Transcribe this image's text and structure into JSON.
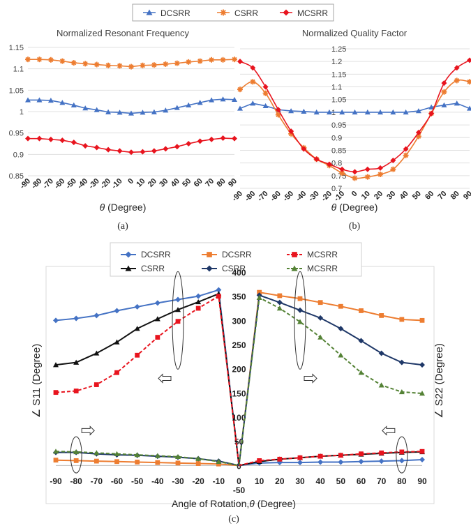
{
  "top_legend": [
    {
      "label": "DCSRR",
      "color": "#4472C4",
      "marker": "triangle"
    },
    {
      "label": "CSRR",
      "color": "#ED7D31",
      "marker": "star"
    },
    {
      "label": "MCSRR",
      "color": "#E8141E",
      "marker": "diamond"
    }
  ],
  "captions": {
    "a": "(a)",
    "b": "(b)",
    "c": "(c)"
  },
  "chart_data": [
    {
      "id": "a",
      "type": "line",
      "title": "Normalized Resonant Frequency",
      "xlabel_symbol": "θ",
      "xlabel_text": " (Degree)",
      "x": [
        -90,
        -80,
        -70,
        -60,
        -50,
        -40,
        -30,
        -20,
        -10,
        0,
        10,
        20,
        30,
        40,
        50,
        60,
        70,
        80,
        90
      ],
      "ylim": [
        0.85,
        1.15
      ],
      "yticks": [
        "0.85",
        "0.9",
        "0.95",
        "1",
        "1.05",
        "1.1",
        "1.15"
      ],
      "grid": true,
      "series": [
        {
          "name": "DCSRR",
          "color": "#4472C4",
          "marker": "triangle",
          "values": [
            1.027,
            1.027,
            1.026,
            1.021,
            1.015,
            1.008,
            1.004,
            0.999,
            0.998,
            0.996,
            0.998,
            0.999,
            1.003,
            1.009,
            1.015,
            1.021,
            1.027,
            1.029,
            1.028
          ]
        },
        {
          "name": "CSRR",
          "color": "#ED7D31",
          "marker": "star",
          "values": [
            1.122,
            1.122,
            1.121,
            1.118,
            1.114,
            1.112,
            1.11,
            1.108,
            1.107,
            1.105,
            1.108,
            1.109,
            1.111,
            1.113,
            1.116,
            1.118,
            1.121,
            1.121,
            1.122
          ]
        },
        {
          "name": "MCSRR",
          "color": "#E8141E",
          "marker": "diamond",
          "values": [
            0.937,
            0.937,
            0.935,
            0.933,
            0.928,
            0.92,
            0.916,
            0.911,
            0.908,
            0.905,
            0.906,
            0.908,
            0.913,
            0.918,
            0.925,
            0.931,
            0.935,
            0.938,
            0.937
          ]
        }
      ]
    },
    {
      "id": "b",
      "type": "line",
      "title": "Normalized Quality Factor",
      "xlabel_symbol": "θ",
      "xlabel_text": " (Degree)",
      "x": [
        -90,
        -80,
        -70,
        -60,
        -50,
        -40,
        -30,
        -20,
        -10,
        0,
        10,
        20,
        30,
        40,
        50,
        60,
        70,
        80,
        90
      ],
      "ylim": [
        0.7,
        1.25
      ],
      "yticks": [
        "0.7",
        "0.75",
        "0.8",
        "0.85",
        "0.9",
        "0.95",
        "1",
        "1.05",
        "1.1",
        "1.15",
        "1.2",
        "1.25"
      ],
      "grid": true,
      "series": [
        {
          "name": "DCSRR",
          "color": "#4472C4",
          "marker": "triangle",
          "values": [
            1.015,
            1.035,
            1.025,
            1.01,
            1.005,
            1.003,
            1.0,
            1.0,
            1.0,
            1.0,
            1.0,
            1.0,
            1.0,
            1.0,
            1.005,
            1.02,
            1.028,
            1.035,
            1.015
          ]
        },
        {
          "name": "CSRR",
          "color": "#ED7D31",
          "marker": "star",
          "values": [
            1.09,
            1.12,
            1.075,
            0.99,
            0.915,
            0.86,
            0.815,
            0.79,
            0.76,
            0.74,
            0.745,
            0.755,
            0.775,
            0.83,
            0.905,
            0.995,
            1.08,
            1.125,
            1.12
          ]
        },
        {
          "name": "MCSRR",
          "color": "#E8141E",
          "marker": "diamond",
          "values": [
            1.2,
            1.175,
            1.1,
            1.01,
            0.925,
            0.855,
            0.815,
            0.795,
            0.775,
            0.765,
            0.775,
            0.78,
            0.81,
            0.855,
            0.92,
            0.995,
            1.115,
            1.175,
            1.205
          ]
        }
      ]
    },
    {
      "id": "c",
      "type": "line",
      "xlabel_text": "Angle of Rotation,",
      "xlabel_symbol": "θ",
      "xlabel_unit": " (Degree)",
      "ylabel_left": "∠ S11 (Degree)",
      "ylabel_right": "∠ S22 (Degree)",
      "x": [
        -90,
        -80,
        -70,
        -60,
        -50,
        -40,
        -30,
        -20,
        -10,
        0,
        10,
        20,
        30,
        40,
        50,
        60,
        70,
        80,
        90
      ],
      "ylim": [
        -50,
        400
      ],
      "yticks": [
        "-50",
        "0",
        "50",
        "100",
        "150",
        "200",
        "250",
        "300",
        "350",
        "400"
      ],
      "grid": false,
      "legend": [
        {
          "label": "DCSRR",
          "color": "#4472C4",
          "marker": "diamond",
          "dash": false
        },
        {
          "label": "DCSRR",
          "color": "#ED7D31",
          "marker": "square",
          "dash": false
        },
        {
          "label": "MCSRR",
          "color": "#E8141E",
          "marker": "square",
          "dash": true
        },
        {
          "label": "CSRR",
          "color": "#111111",
          "marker": "triangle",
          "dash": false
        },
        {
          "label": "CSRR",
          "color": "#1F3868",
          "marker": "diamond",
          "dash": false
        },
        {
          "label": "MCSRR",
          "color": "#548235",
          "marker": "triangle",
          "dash": true
        }
      ],
      "series": [
        {
          "name": "DCSRR",
          "group": "S11",
          "color": "#4472C4",
          "marker": "diamond",
          "dash": false,
          "x": [
            -90,
            -80,
            -70,
            -60,
            -50,
            -40,
            -30,
            -20,
            -10,
            0
          ],
          "values": [
            300,
            304,
            310,
            320,
            328,
            336,
            343,
            350,
            363,
            0
          ]
        },
        {
          "name": "CSRR",
          "group": "S11",
          "color": "#111111",
          "marker": "triangle",
          "dash": false,
          "x": [
            -90,
            -80,
            -70,
            -60,
            -50,
            -40,
            -30,
            -20,
            -10,
            0
          ],
          "values": [
            208,
            213,
            232,
            255,
            283,
            303,
            322,
            338,
            355,
            0
          ]
        },
        {
          "name": "MCSRR",
          "group": "S11",
          "color": "#E8141E",
          "marker": "square",
          "dash": true,
          "x": [
            -90,
            -80,
            -70,
            -60,
            -50,
            -40,
            -30,
            -20,
            -10,
            0
          ],
          "values": [
            151,
            154,
            167,
            192,
            228,
            265,
            298,
            325,
            350,
            0
          ]
        },
        {
          "name": "DCSRR",
          "group": "S22",
          "color": "#ED7D31",
          "marker": "square",
          "dash": false,
          "x": [
            0,
            10,
            20,
            30,
            40,
            50,
            60,
            70,
            80,
            90
          ],
          "values": [
            0,
            358,
            351,
            345,
            337,
            329,
            320,
            310,
            302,
            300
          ]
        },
        {
          "name": "CSRR",
          "group": "S22",
          "color": "#1F3868",
          "marker": "diamond",
          "dash": false,
          "x": [
            0,
            10,
            20,
            30,
            40,
            50,
            60,
            70,
            80,
            90
          ],
          "values": [
            0,
            352,
            337,
            321,
            305,
            283,
            258,
            232,
            213,
            208
          ]
        },
        {
          "name": "MCSRR",
          "group": "S22",
          "color": "#548235",
          "marker": "triangle",
          "dash": true,
          "x": [
            0,
            10,
            20,
            30,
            40,
            50,
            60,
            70,
            80,
            90
          ],
          "values": [
            0,
            347,
            325,
            297,
            265,
            228,
            192,
            166,
            152,
            149
          ]
        },
        {
          "name": "DCSRR",
          "group": "S22-low",
          "color": "#4472C4",
          "marker": "diamond",
          "dash": false,
          "x": [
            0,
            10,
            20,
            30,
            40,
            50,
            60,
            70,
            80,
            90
          ],
          "values": [
            0,
            5,
            6,
            6,
            7,
            7,
            8,
            9,
            10,
            12
          ]
        },
        {
          "name": "CSRR",
          "group": "S22-low",
          "color": "#111111",
          "marker": "triangle",
          "dash": false,
          "x": [
            0,
            10,
            20,
            30,
            40,
            50,
            60,
            70,
            80,
            90
          ],
          "values": [
            0,
            8,
            13,
            16,
            19,
            21,
            23,
            25,
            27,
            28
          ]
        },
        {
          "name": "MCSRR",
          "group": "S22-low",
          "color": "#E8141E",
          "marker": "square",
          "dash": true,
          "x": [
            0,
            10,
            20,
            30,
            40,
            50,
            60,
            70,
            80,
            90
          ],
          "values": [
            0,
            10,
            13,
            16,
            19,
            21,
            24,
            26,
            28,
            29
          ]
        },
        {
          "name": "DCSRR",
          "group": "S11-low",
          "color": "#ED7D31",
          "marker": "square",
          "dash": false,
          "x": [
            -90,
            -80,
            -70,
            -60,
            -50,
            -40,
            -30,
            -20,
            -10,
            0
          ],
          "values": [
            11,
            10,
            9,
            8,
            7,
            6,
            5,
            4,
            3,
            0
          ]
        },
        {
          "name": "CSRR",
          "group": "S11-low",
          "color": "#1F3868",
          "marker": "diamond",
          "dash": false,
          "x": [
            -90,
            -80,
            -70,
            -60,
            -50,
            -40,
            -30,
            -20,
            -10,
            0
          ],
          "values": [
            27,
            27,
            24,
            22,
            21,
            19,
            17,
            14,
            9,
            0
          ]
        },
        {
          "name": "MCSRR",
          "group": "S11-low",
          "color": "#548235",
          "marker": "triangle",
          "dash": true,
          "x": [
            -90,
            -80,
            -70,
            -60,
            -50,
            -40,
            -30,
            -20,
            -10,
            0
          ],
          "values": [
            29,
            28,
            26,
            24,
            22,
            20,
            18,
            14,
            8,
            0
          ]
        }
      ]
    }
  ]
}
